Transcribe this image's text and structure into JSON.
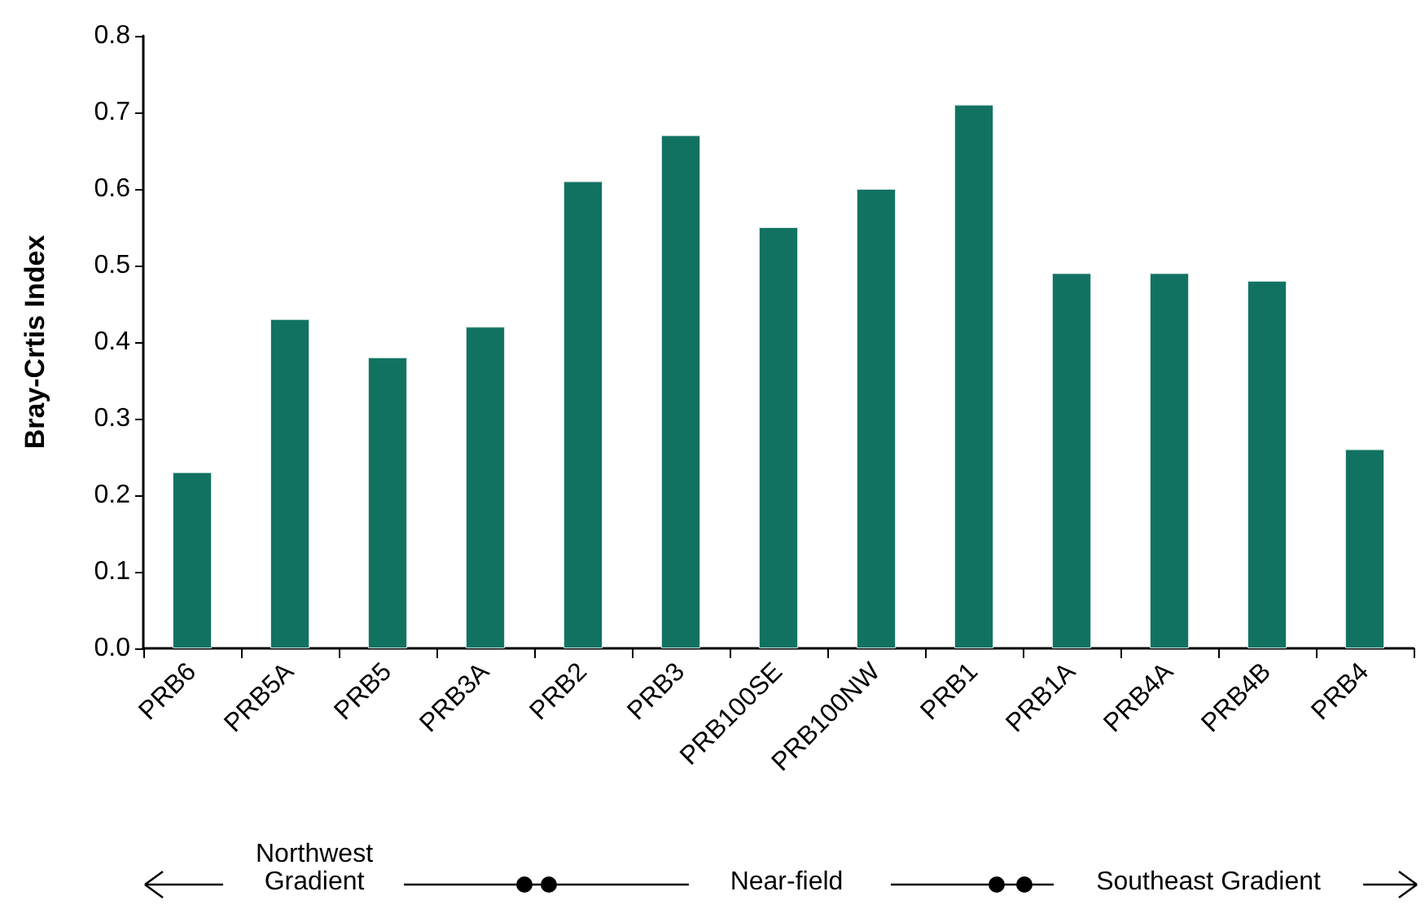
{
  "chart_data": {
    "type": "bar",
    "ylabel": "Bray-Crtis Index",
    "categories": [
      "PRB6",
      "PRB5A",
      "PRB5",
      "PRB3A",
      "PRB2",
      "PRB3",
      "PRB100SE",
      "PRB100NW",
      "PRB1",
      "PRB1A",
      "PRB4A",
      "PRB4B",
      "PRB4"
    ],
    "values": [
      0.23,
      0.43,
      0.38,
      0.42,
      0.61,
      0.67,
      0.55,
      0.6,
      0.71,
      0.49,
      0.49,
      0.48,
      0.26
    ],
    "color": "#127262",
    "ylim": [
      0,
      0.8
    ],
    "yticks": [
      {
        "value": 0,
        "label": "0.0"
      },
      0.1,
      0.2,
      0.3,
      0.4,
      0.5,
      0.6,
      0.7,
      0.8
    ],
    "grid": false,
    "annotations": [
      "Northwest Gradient",
      "Near-field",
      "Southeast Gradient"
    ]
  }
}
